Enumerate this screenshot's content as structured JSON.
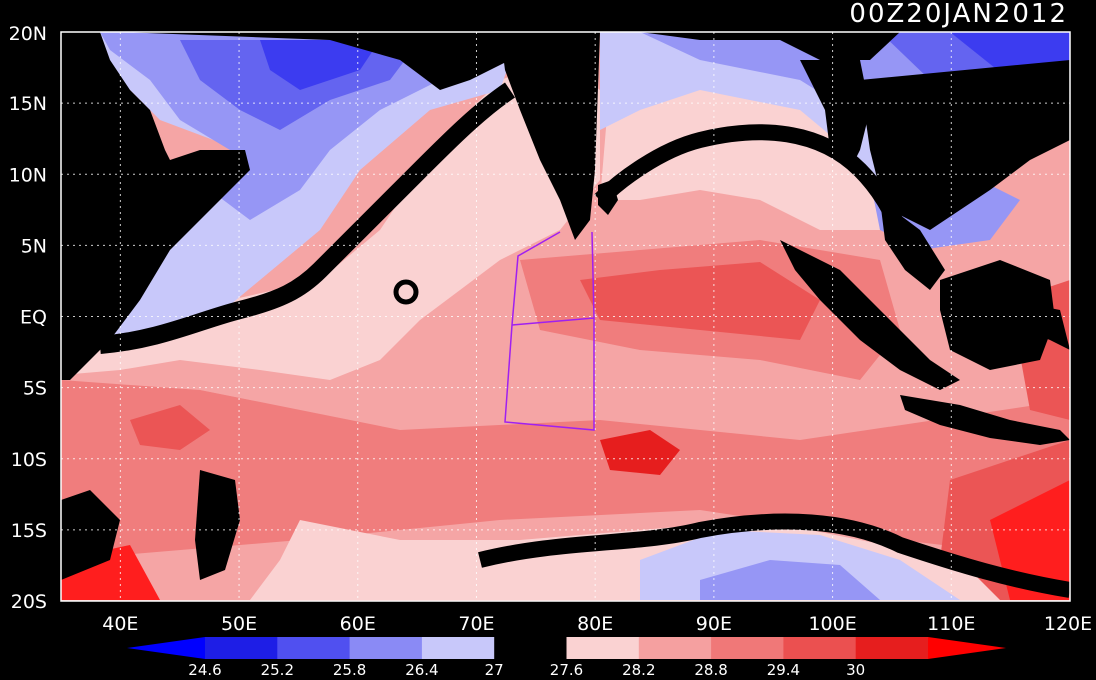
{
  "map": {
    "timestamp": "00Z20JAN2012",
    "lon_labels": [
      "40E",
      "50E",
      "60E",
      "70E",
      "80E",
      "90E",
      "100E",
      "110E",
      "120E"
    ],
    "lon_values": [
      40,
      50,
      60,
      70,
      80,
      90,
      100,
      110,
      120
    ],
    "lat_labels": [
      "20N",
      "15N",
      "10N",
      "5N",
      "EQ",
      "5S",
      "10S",
      "15S",
      "20S"
    ],
    "lat_values": [
      20,
      15,
      10,
      5,
      0,
      -5,
      -10,
      -15,
      -20
    ],
    "lon_range": [
      35,
      120
    ],
    "lat_range": [
      -20,
      20
    ],
    "land_color": "#000000",
    "grid": "dotted"
  },
  "colorbar": {
    "labels": [
      "24.6",
      "25.2",
      "25.8",
      "26.4",
      "27",
      "27.6",
      "28.2",
      "28.8",
      "29.4",
      "30"
    ],
    "colors": [
      "#0000ff",
      "#1e1ee6",
      "#5050f0",
      "#8a8af5",
      "#c8c8fa",
      "#000000",
      "#fad2d2",
      "#f5a0a0",
      "#f07878",
      "#eb5050",
      "#e61e1e",
      "#ff0000"
    ]
  },
  "legend_colors": {
    "c_lt24_6": "#1a1ae6",
    "c_24_6": "#3c3cf0",
    "c_25_2": "#6464f0",
    "c_25_8": "#9696f5",
    "c_26_4": "#c8c8fa",
    "c_27": "#000000",
    "c_27_6": "#fad2d2",
    "c_28_2": "#f5a5a5",
    "c_28_8": "#f07d7d",
    "c_29_4": "#eb5555",
    "c_30": "#ff1e1e"
  },
  "box_color": "#a020f0"
}
